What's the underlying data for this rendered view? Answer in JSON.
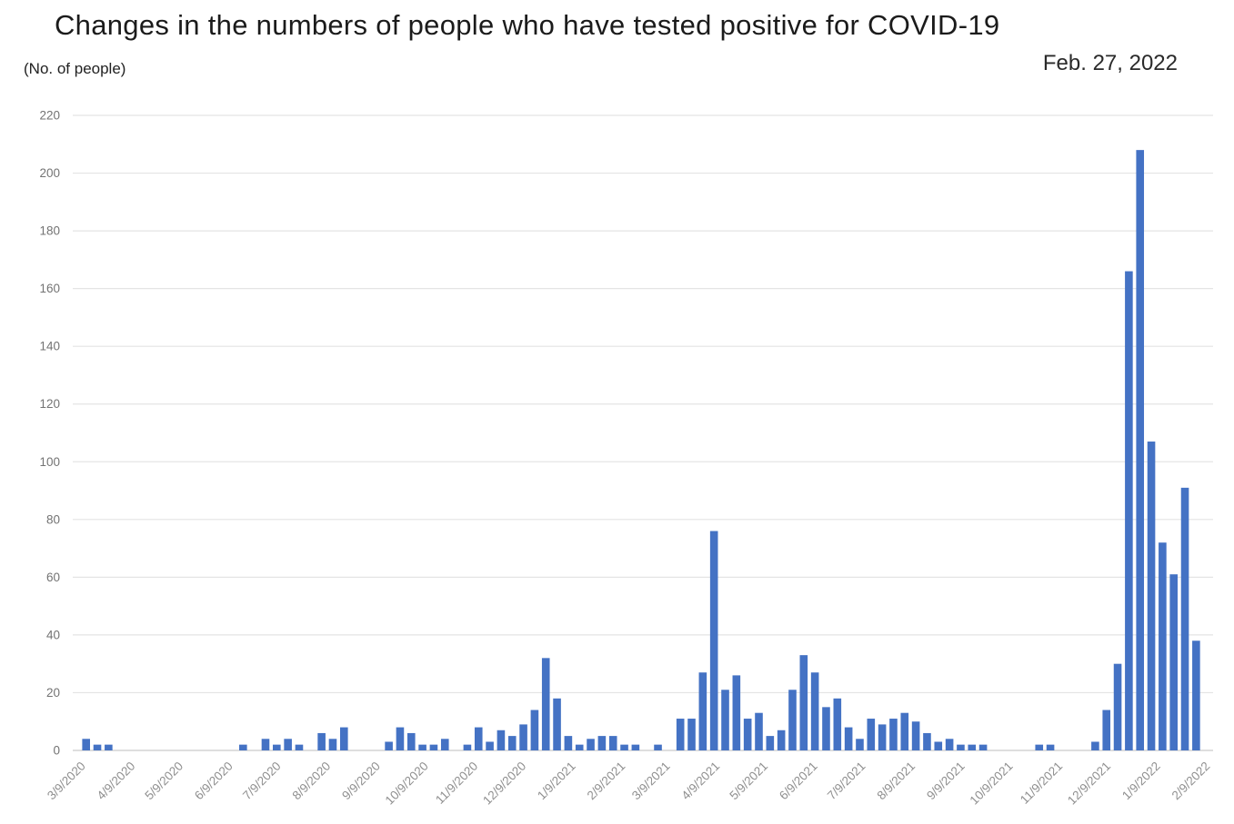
{
  "header": {
    "title": "Changes in the numbers of people who have tested positive for COVID-19",
    "y_axis_unit": "(No. of people)",
    "date_label": "Feb. 27, 2022"
  },
  "colors": {
    "bar": "#4472C4",
    "gridline": "#E4E4E4",
    "axis_line": "#C9C9C9",
    "y_tick_text": "#737373",
    "x_tick_text": "#8F8F8F",
    "title_text": "#1B1B1B"
  },
  "chart_data": {
    "type": "bar",
    "title": "Changes in the numbers of people who have tested positive for COVID-19",
    "subtitle_date": "Feb. 27, 2022",
    "ylabel": "(No. of people)",
    "xlabel": "",
    "ylim": [
      0,
      220
    ],
    "grid": true,
    "legend_position": "none",
    "x_interval": "weekly",
    "y_ticks": [
      0,
      20,
      40,
      60,
      80,
      100,
      120,
      140,
      160,
      180,
      200,
      220
    ],
    "x_tick_labels": [
      "3/9/2020",
      "4/9/2020",
      "5/9/2020",
      "6/9/2020",
      "7/9/2020",
      "8/9/2020",
      "9/9/2020",
      "10/9/2020",
      "11/9/2020",
      "12/9/2020",
      "1/9/2021",
      "2/9/2021",
      "3/9/2021",
      "4/9/2021",
      "5/9/2021",
      "6/9/2021",
      "7/9/2021",
      "8/9/2021",
      "9/9/2021",
      "10/9/2021",
      "11/9/2021",
      "12/9/2021",
      "1/9/2022",
      "2/9/2022"
    ],
    "x_tick_slots": [
      0,
      4.43,
      8.71,
      13.14,
      17.43,
      21.86,
      26.29,
      30.57,
      35.0,
      39.29,
      43.71,
      48.14,
      52.14,
      56.57,
      60.86,
      65.29,
      69.57,
      74.0,
      78.43,
      82.71,
      87.14,
      91.43,
      95.86,
      100.29
    ],
    "values": [
      4,
      2,
      2,
      0,
      0,
      0,
      0,
      0,
      0,
      0,
      0,
      0,
      0,
      0,
      2,
      0,
      4,
      2,
      4,
      2,
      0,
      6,
      4,
      8,
      0,
      0,
      0,
      3,
      8,
      6,
      2,
      2,
      4,
      0,
      2,
      8,
      3,
      7,
      5,
      9,
      14,
      32,
      18,
      5,
      2,
      4,
      5,
      5,
      2,
      2,
      0,
      2,
      0,
      11,
      11,
      27,
      76,
      21,
      26,
      11,
      13,
      5,
      7,
      21,
      33,
      27,
      15,
      18,
      8,
      4,
      11,
      9,
      11,
      13,
      10,
      6,
      3,
      4,
      2,
      2,
      2,
      0,
      0,
      0,
      0,
      2,
      2,
      0,
      0,
      0,
      3,
      14,
      30,
      166,
      208,
      107,
      72,
      61,
      91,
      38
    ]
  }
}
